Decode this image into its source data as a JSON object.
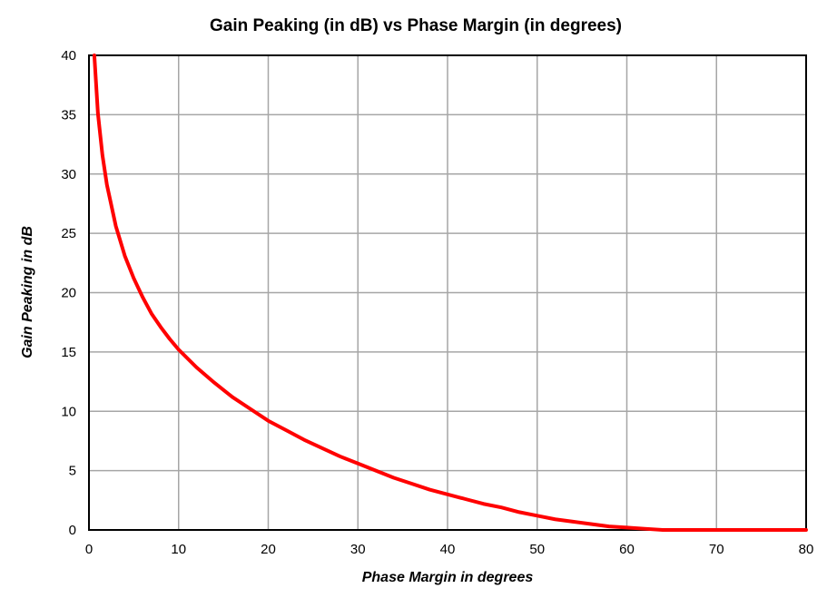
{
  "chart_data": {
    "type": "line",
    "title": "Gain Peaking (in dB)  vs  Phase Margin (in degrees)",
    "xlabel": "Phase Margin in degrees",
    "ylabel": "Gain Peaking in dB",
    "xlim": [
      0,
      80
    ],
    "ylim": [
      0,
      40
    ],
    "xticks": [
      "0",
      "10",
      "20",
      "30",
      "40",
      "50",
      "60",
      "70",
      "80"
    ],
    "yticks": [
      "0",
      "5",
      "10",
      "15",
      "20",
      "25",
      "30",
      "35",
      "40"
    ],
    "grid": true,
    "legend": "none",
    "series": [
      {
        "color": "#ff0000",
        "x": [
          0.6,
          1,
          1.5,
          2,
          3,
          4,
          5,
          6,
          7,
          8,
          9,
          10,
          12,
          14,
          16,
          18,
          20,
          22,
          24,
          26,
          28,
          30,
          32,
          34,
          36,
          38,
          40,
          42,
          44,
          46,
          48,
          50,
          52,
          54,
          56,
          58,
          60,
          62,
          64,
          66,
          70,
          75,
          80
        ],
        "y": [
          40,
          35.1,
          31.6,
          29.1,
          25.6,
          23.1,
          21.2,
          19.6,
          18.2,
          17.1,
          16.1,
          15.2,
          13.7,
          12.4,
          11.2,
          10.2,
          9.2,
          8.4,
          7.6,
          6.9,
          6.2,
          5.6,
          5.0,
          4.4,
          3.9,
          3.4,
          3.0,
          2.6,
          2.2,
          1.9,
          1.5,
          1.2,
          0.9,
          0.7,
          0.5,
          0.3,
          0.2,
          0.1,
          0,
          0,
          0,
          0,
          0
        ]
      }
    ]
  }
}
